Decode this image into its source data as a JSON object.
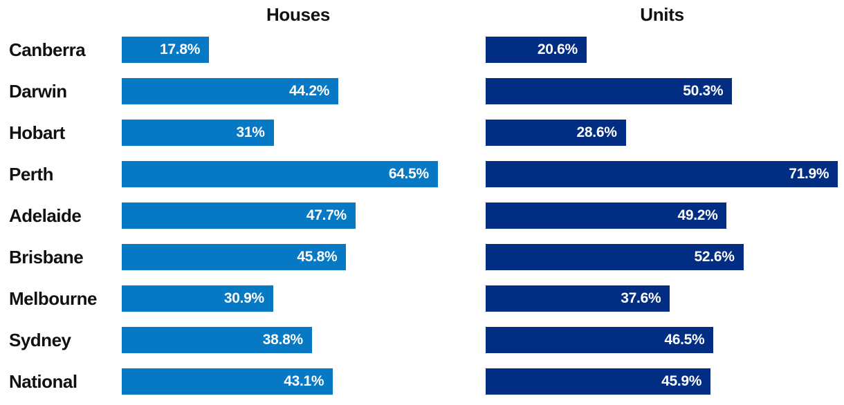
{
  "chart_data": {
    "type": "bar",
    "orientation": "horizontal",
    "categories": [
      "Canberra",
      "Darwin",
      "Hobart",
      "Perth",
      "Adelaide",
      "Brisbane",
      "Melbourne",
      "Sydney",
      "National"
    ],
    "series": [
      {
        "name": "Houses",
        "color": "#0778c4",
        "values": [
          17.8,
          44.2,
          31,
          64.5,
          47.7,
          45.8,
          30.9,
          38.8,
          43.1
        ],
        "labels": [
          "17.8%",
          "44.2%",
          "31%",
          "64.5%",
          "47.7%",
          "45.8%",
          "30.9%",
          "38.8%",
          "43.1%"
        ]
      },
      {
        "name": "Units",
        "color": "#012d82",
        "values": [
          20.6,
          50.3,
          28.6,
          71.9,
          49.2,
          52.6,
          37.6,
          46.5,
          45.9
        ],
        "labels": [
          "20.6%",
          "50.3%",
          "28.6%",
          "71.9%",
          "49.2%",
          "52.6%",
          "37.6%",
          "46.5%",
          "45.9%"
        ]
      }
    ],
    "xlim": [
      0,
      72
    ],
    "grid": "off",
    "legend_position": "column-headers",
    "value_label_placement": "inside-bar-right",
    "colors": {
      "houses_bar": "#0778c4",
      "units_bar": "#012d82",
      "category_text": "#111111",
      "value_text": "#ffffff",
      "background": "#ffffff"
    }
  }
}
